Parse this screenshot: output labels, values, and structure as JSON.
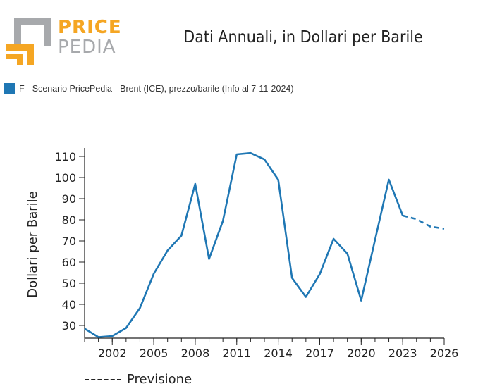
{
  "logo": {
    "word1": "PRICE",
    "word2": "PEDIA"
  },
  "colors": {
    "series": "#1f77b4",
    "logo_orange": "#f5a623",
    "logo_gray": "#a7a9ac"
  },
  "chart_data": {
    "type": "line",
    "title": "Dati Annuali, in Dollari per Barile",
    "ylabel": "Dollari per Barile",
    "xlabel": "",
    "xlim": [
      2000,
      2026
    ],
    "ylim": [
      24,
      114
    ],
    "xticks": [
      2002,
      2005,
      2008,
      2011,
      2014,
      2017,
      2020,
      2023,
      2026
    ],
    "yticks": [
      30,
      40,
      50,
      60,
      70,
      80,
      90,
      100,
      110
    ],
    "grid": false,
    "legend_position": "top-left",
    "series": [
      {
        "name": "F - Scenario PricePedia - Brent (ICE), prezzo/barile (Info al 7-11-2024)",
        "x": [
          2000,
          2001,
          2002,
          2003,
          2004,
          2005,
          2006,
          2007,
          2008,
          2009,
          2010,
          2011,
          2012,
          2013,
          2014,
          2015,
          2016,
          2017,
          2018,
          2019,
          2020,
          2021,
          2022,
          2023
        ],
        "y": [
          28.5,
          24.5,
          25.0,
          28.8,
          38.3,
          54.5,
          65.5,
          72.5,
          97.0,
          61.5,
          79.5,
          111.0,
          111.6,
          108.6,
          99.0,
          52.5,
          43.5,
          54.3,
          71.0,
          64.0,
          41.8,
          70.5,
          99.0,
          82.0
        ],
        "style": "solid"
      },
      {
        "name": "Previsione",
        "x": [
          2023,
          2024,
          2025,
          2026
        ],
        "y": [
          82.0,
          80.3,
          76.8,
          75.8
        ],
        "style": "dashed"
      }
    ],
    "annotation": "Previsione"
  }
}
